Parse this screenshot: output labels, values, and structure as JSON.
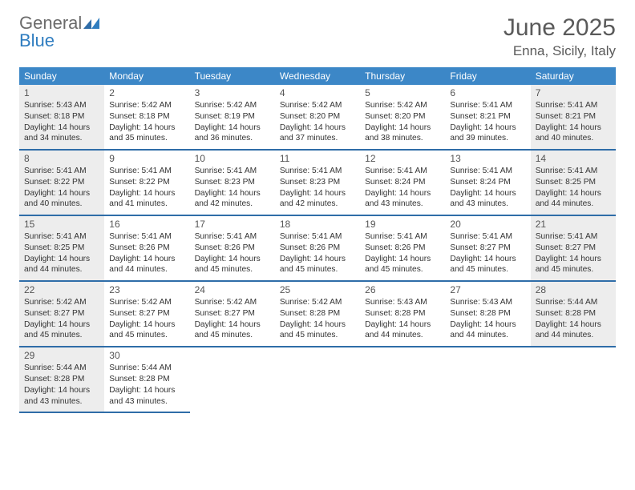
{
  "logo": {
    "part1": "General",
    "part2": "Blue"
  },
  "title": "June 2025",
  "location": "Enna, Sicily, Italy",
  "colors": {
    "header_bg": "#3c87c7",
    "week_border": "#2f6da8",
    "shaded_bg": "#ededed",
    "text": "#333333",
    "title_text": "#5a5a5a"
  },
  "day_names": [
    "Sunday",
    "Monday",
    "Tuesday",
    "Wednesday",
    "Thursday",
    "Friday",
    "Saturday"
  ],
  "weeks": [
    [
      {
        "n": "1",
        "shaded": true,
        "sr": "Sunrise: 5:43 AM",
        "ss": "Sunset: 8:18 PM",
        "d1": "Daylight: 14 hours",
        "d2": "and 34 minutes."
      },
      {
        "n": "2",
        "shaded": false,
        "sr": "Sunrise: 5:42 AM",
        "ss": "Sunset: 8:18 PM",
        "d1": "Daylight: 14 hours",
        "d2": "and 35 minutes."
      },
      {
        "n": "3",
        "shaded": false,
        "sr": "Sunrise: 5:42 AM",
        "ss": "Sunset: 8:19 PM",
        "d1": "Daylight: 14 hours",
        "d2": "and 36 minutes."
      },
      {
        "n": "4",
        "shaded": false,
        "sr": "Sunrise: 5:42 AM",
        "ss": "Sunset: 8:20 PM",
        "d1": "Daylight: 14 hours",
        "d2": "and 37 minutes."
      },
      {
        "n": "5",
        "shaded": false,
        "sr": "Sunrise: 5:42 AM",
        "ss": "Sunset: 8:20 PM",
        "d1": "Daylight: 14 hours",
        "d2": "and 38 minutes."
      },
      {
        "n": "6",
        "shaded": false,
        "sr": "Sunrise: 5:41 AM",
        "ss": "Sunset: 8:21 PM",
        "d1": "Daylight: 14 hours",
        "d2": "and 39 minutes."
      },
      {
        "n": "7",
        "shaded": true,
        "sr": "Sunrise: 5:41 AM",
        "ss": "Sunset: 8:21 PM",
        "d1": "Daylight: 14 hours",
        "d2": "and 40 minutes."
      }
    ],
    [
      {
        "n": "8",
        "shaded": true,
        "sr": "Sunrise: 5:41 AM",
        "ss": "Sunset: 8:22 PM",
        "d1": "Daylight: 14 hours",
        "d2": "and 40 minutes."
      },
      {
        "n": "9",
        "shaded": false,
        "sr": "Sunrise: 5:41 AM",
        "ss": "Sunset: 8:22 PM",
        "d1": "Daylight: 14 hours",
        "d2": "and 41 minutes."
      },
      {
        "n": "10",
        "shaded": false,
        "sr": "Sunrise: 5:41 AM",
        "ss": "Sunset: 8:23 PM",
        "d1": "Daylight: 14 hours",
        "d2": "and 42 minutes."
      },
      {
        "n": "11",
        "shaded": false,
        "sr": "Sunrise: 5:41 AM",
        "ss": "Sunset: 8:23 PM",
        "d1": "Daylight: 14 hours",
        "d2": "and 42 minutes."
      },
      {
        "n": "12",
        "shaded": false,
        "sr": "Sunrise: 5:41 AM",
        "ss": "Sunset: 8:24 PM",
        "d1": "Daylight: 14 hours",
        "d2": "and 43 minutes."
      },
      {
        "n": "13",
        "shaded": false,
        "sr": "Sunrise: 5:41 AM",
        "ss": "Sunset: 8:24 PM",
        "d1": "Daylight: 14 hours",
        "d2": "and 43 minutes."
      },
      {
        "n": "14",
        "shaded": true,
        "sr": "Sunrise: 5:41 AM",
        "ss": "Sunset: 8:25 PM",
        "d1": "Daylight: 14 hours",
        "d2": "and 44 minutes."
      }
    ],
    [
      {
        "n": "15",
        "shaded": true,
        "sr": "Sunrise: 5:41 AM",
        "ss": "Sunset: 8:25 PM",
        "d1": "Daylight: 14 hours",
        "d2": "and 44 minutes."
      },
      {
        "n": "16",
        "shaded": false,
        "sr": "Sunrise: 5:41 AM",
        "ss": "Sunset: 8:26 PM",
        "d1": "Daylight: 14 hours",
        "d2": "and 44 minutes."
      },
      {
        "n": "17",
        "shaded": false,
        "sr": "Sunrise: 5:41 AM",
        "ss": "Sunset: 8:26 PM",
        "d1": "Daylight: 14 hours",
        "d2": "and 45 minutes."
      },
      {
        "n": "18",
        "shaded": false,
        "sr": "Sunrise: 5:41 AM",
        "ss": "Sunset: 8:26 PM",
        "d1": "Daylight: 14 hours",
        "d2": "and 45 minutes."
      },
      {
        "n": "19",
        "shaded": false,
        "sr": "Sunrise: 5:41 AM",
        "ss": "Sunset: 8:26 PM",
        "d1": "Daylight: 14 hours",
        "d2": "and 45 minutes."
      },
      {
        "n": "20",
        "shaded": false,
        "sr": "Sunrise: 5:41 AM",
        "ss": "Sunset: 8:27 PM",
        "d1": "Daylight: 14 hours",
        "d2": "and 45 minutes."
      },
      {
        "n": "21",
        "shaded": true,
        "sr": "Sunrise: 5:41 AM",
        "ss": "Sunset: 8:27 PM",
        "d1": "Daylight: 14 hours",
        "d2": "and 45 minutes."
      }
    ],
    [
      {
        "n": "22",
        "shaded": true,
        "sr": "Sunrise: 5:42 AM",
        "ss": "Sunset: 8:27 PM",
        "d1": "Daylight: 14 hours",
        "d2": "and 45 minutes."
      },
      {
        "n": "23",
        "shaded": false,
        "sr": "Sunrise: 5:42 AM",
        "ss": "Sunset: 8:27 PM",
        "d1": "Daylight: 14 hours",
        "d2": "and 45 minutes."
      },
      {
        "n": "24",
        "shaded": false,
        "sr": "Sunrise: 5:42 AM",
        "ss": "Sunset: 8:27 PM",
        "d1": "Daylight: 14 hours",
        "d2": "and 45 minutes."
      },
      {
        "n": "25",
        "shaded": false,
        "sr": "Sunrise: 5:42 AM",
        "ss": "Sunset: 8:28 PM",
        "d1": "Daylight: 14 hours",
        "d2": "and 45 minutes."
      },
      {
        "n": "26",
        "shaded": false,
        "sr": "Sunrise: 5:43 AM",
        "ss": "Sunset: 8:28 PM",
        "d1": "Daylight: 14 hours",
        "d2": "and 44 minutes."
      },
      {
        "n": "27",
        "shaded": false,
        "sr": "Sunrise: 5:43 AM",
        "ss": "Sunset: 8:28 PM",
        "d1": "Daylight: 14 hours",
        "d2": "and 44 minutes."
      },
      {
        "n": "28",
        "shaded": true,
        "sr": "Sunrise: 5:44 AM",
        "ss": "Sunset: 8:28 PM",
        "d1": "Daylight: 14 hours",
        "d2": "and 44 minutes."
      }
    ],
    [
      {
        "n": "29",
        "shaded": true,
        "sr": "Sunrise: 5:44 AM",
        "ss": "Sunset: 8:28 PM",
        "d1": "Daylight: 14 hours",
        "d2": "and 43 minutes."
      },
      {
        "n": "30",
        "shaded": false,
        "sr": "Sunrise: 5:44 AM",
        "ss": "Sunset: 8:28 PM",
        "d1": "Daylight: 14 hours",
        "d2": "and 43 minutes."
      },
      null,
      null,
      null,
      null,
      null
    ]
  ]
}
